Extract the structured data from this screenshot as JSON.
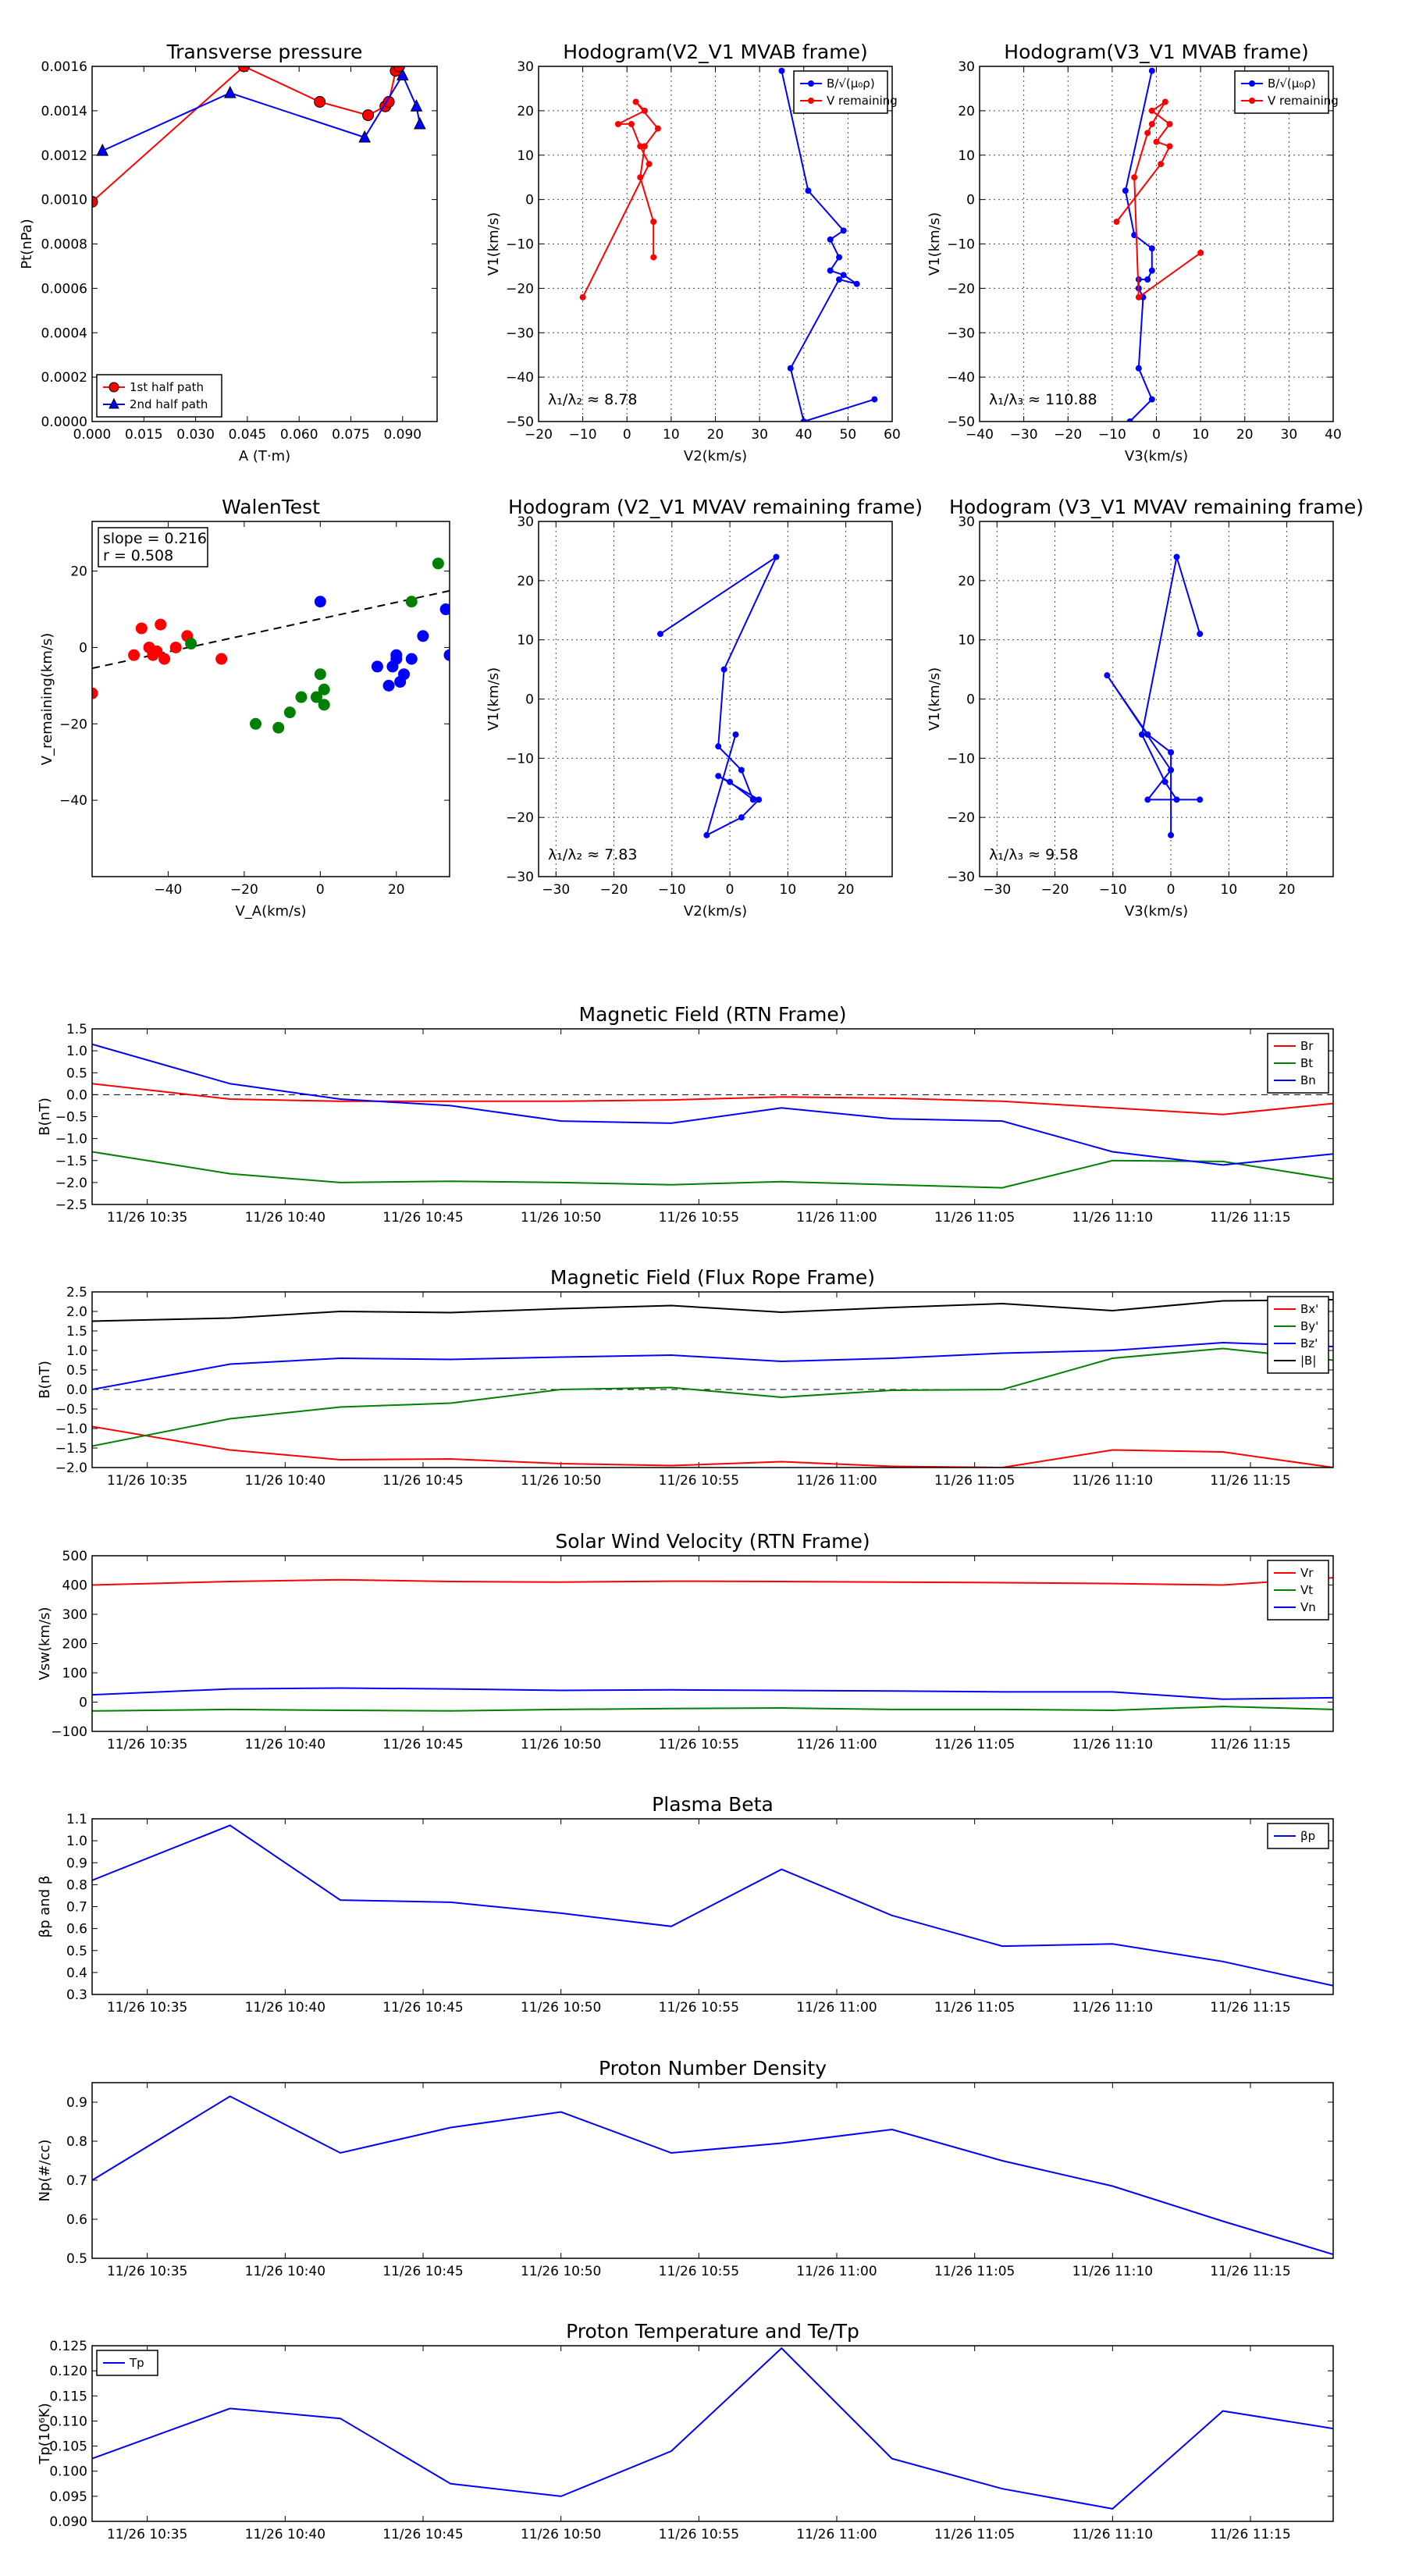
{
  "colors": {
    "red": "#ff0000",
    "blue": "#0000ff",
    "green": "#008000",
    "black": "#000000"
  },
  "chart_data": [
    {
      "id": "tp",
      "type": "line",
      "title": "Transverse pressure",
      "xlabel": "A (T·m)",
      "ylabel": "Pt(nPa)",
      "xlim": [
        0.0,
        0.1
      ],
      "ylim": [
        0.0,
        0.0016
      ],
      "xticks": [
        0.0,
        0.015,
        0.03,
        0.045,
        0.06,
        0.075,
        0.09
      ],
      "xtick_labels": [
        "0.000",
        "0.015",
        "0.030",
        "0.045",
        "0.060",
        "0.075",
        "0.090"
      ],
      "yticks": [
        0.0,
        0.0002,
        0.0004,
        0.0006,
        0.0008,
        0.001,
        0.0012,
        0.0014,
        0.0016
      ],
      "ytick_labels": [
        "0.0000",
        "0.0002",
        "0.0004",
        "0.0006",
        "0.0008",
        "0.0010",
        "0.0012",
        "0.0014",
        "0.0016"
      ],
      "grid": false,
      "legend": "lower-left",
      "series": [
        {
          "name": "1st half path",
          "color": "red",
          "marker": "circle",
          "x": [
            0.0,
            0.044,
            0.066,
            0.08,
            0.085,
            0.086,
            0.088,
            0.089
          ],
          "y": [
            0.00099,
            0.0016,
            0.00144,
            0.00138,
            0.00142,
            0.00144,
            0.00158,
            0.0016
          ]
        },
        {
          "name": "2nd half path",
          "color": "blue",
          "marker": "triangle",
          "x": [
            0.003,
            0.04,
            0.079,
            0.09,
            0.094,
            0.095
          ],
          "y": [
            0.00122,
            0.00148,
            0.00128,
            0.00156,
            0.00142,
            0.00134
          ]
        }
      ]
    },
    {
      "id": "h1",
      "type": "line",
      "title": "Hodogram(V2_V1 MVAB frame)",
      "xlabel": "V2(km/s)",
      "ylabel": "V1(km/s)",
      "xlim": [
        -20,
        60
      ],
      "ylim": [
        -50,
        30
      ],
      "xticks": [
        -20,
        -10,
        0,
        10,
        20,
        30,
        40,
        50,
        60
      ],
      "xtick_labels": [
        "−20",
        "−10",
        "0",
        "10",
        "20",
        "30",
        "40",
        "50",
        "60"
      ],
      "yticks": [
        -50,
        -40,
        -30,
        -20,
        -10,
        0,
        10,
        20,
        30
      ],
      "ytick_labels": [
        "−50",
        "−40",
        "−30",
        "−20",
        "−10",
        "0",
        "10",
        "20",
        "30"
      ],
      "grid": true,
      "legend": "top-right",
      "annotation": "λ₁/λ₂ ≈ 8.78",
      "series": [
        {
          "name": "B/√(μ₀ρ)",
          "color": "blue",
          "marker": "dot",
          "x": [
            35,
            41,
            49,
            46,
            48,
            46,
            49,
            52,
            48,
            37,
            40,
            56
          ],
          "y": [
            29,
            2,
            -7,
            -9,
            -13,
            -16,
            -17,
            -19,
            -18,
            -38,
            -50,
            -45
          ]
        },
        {
          "name": "V remaining",
          "color": "red",
          "marker": "dot",
          "x": [
            6,
            6,
            3,
            4,
            7,
            2,
            4,
            -2,
            1,
            3,
            5,
            -10
          ],
          "y": [
            -13,
            -5,
            5,
            12,
            16,
            22,
            20,
            17,
            17,
            12,
            8,
            -22
          ]
        }
      ]
    },
    {
      "id": "h2",
      "type": "line",
      "title": "Hodogram(V3_V1 MVAB frame)",
      "xlabel": "V3(km/s)",
      "ylabel": "V1(km/s)",
      "xlim": [
        -40,
        40
      ],
      "ylim": [
        -50,
        30
      ],
      "xticks": [
        -40,
        -30,
        -20,
        -10,
        0,
        10,
        20,
        30,
        40
      ],
      "xtick_labels": [
        "−40",
        "−30",
        "−20",
        "−10",
        "0",
        "10",
        "20",
        "30",
        "40"
      ],
      "yticks": [
        -50,
        -40,
        -30,
        -20,
        -10,
        0,
        10,
        20,
        30
      ],
      "ytick_labels": [
        "−50",
        "−40",
        "−30",
        "−20",
        "−10",
        "0",
        "10",
        "20",
        "30"
      ],
      "grid": true,
      "legend": "top-right",
      "annotation": "λ₁/λ₃ ≈ 110.88",
      "series": [
        {
          "name": "B/√(μ₀ρ)",
          "color": "blue",
          "marker": "dot",
          "x": [
            -1,
            -7,
            -5,
            -1,
            -1,
            -2,
            -4,
            -4,
            -3,
            -4,
            -1,
            -6
          ],
          "y": [
            29,
            2,
            -8,
            -11,
            -16,
            -18,
            -18,
            -20,
            -22,
            -38,
            -45,
            -50
          ]
        },
        {
          "name": "V remaining",
          "color": "red",
          "marker": "dot",
          "x": [
            10,
            -4,
            -5,
            -2,
            -1,
            2,
            -1,
            3,
            0,
            3,
            1,
            -9
          ],
          "y": [
            -12,
            -22,
            5,
            15,
            17,
            22,
            20,
            17,
            13,
            12,
            8,
            -5
          ]
        }
      ]
    },
    {
      "id": "wt",
      "type": "scatter",
      "title": "WalenTest",
      "xlabel": "V_A(km/s)",
      "ylabel": "V_remaining(km/s)",
      "xlim": [
        -60,
        34
      ],
      "ylim": [
        -60,
        33
      ],
      "xticks": [
        -40,
        -20,
        0,
        20
      ],
      "xtick_labels": [
        "−40",
        "−20",
        "0",
        "20"
      ],
      "yticks": [
        -40,
        -20,
        0,
        20
      ],
      "ytick_labels": [
        "−40",
        "−20",
        "0",
        "20"
      ],
      "grid": false,
      "text_lines": [
        "slope = 0.216",
        "r = 0.508"
      ],
      "fit_line": {
        "slope": 0.216,
        "intercept": 7.5
      },
      "series": [
        {
          "color": "red",
          "x": [
            -60,
            -49,
            -47,
            -45,
            -43,
            -42,
            -41,
            -38,
            -35,
            -26,
            -44
          ],
          "y": [
            -12,
            -2,
            5,
            0,
            -1,
            6,
            -3,
            0,
            3,
            -3,
            -2
          ]
        },
        {
          "color": "green",
          "x": [
            -34,
            -17,
            -11,
            -8,
            -5,
            -1,
            0,
            1,
            1,
            24,
            31
          ],
          "y": [
            1,
            -20,
            -21,
            -17,
            -13,
            -13,
            -7,
            -11,
            -15,
            12,
            22
          ]
        },
        {
          "color": "blue",
          "x": [
            0,
            15,
            18,
            19,
            20,
            20,
            21,
            22,
            24,
            27,
            33,
            34
          ],
          "y": [
            12,
            -5,
            -10,
            -5,
            -2,
            -3,
            -9,
            -7,
            -3,
            3,
            10,
            -2
          ]
        }
      ]
    },
    {
      "id": "h3",
      "type": "line",
      "title": "Hodogram (V2_V1 MVAV remaining frame)",
      "xlabel": "V2(km/s)",
      "ylabel": "V1(km/s)",
      "xlim": [
        -33,
        28
      ],
      "ylim": [
        -30,
        30
      ],
      "xticks": [
        -30,
        -20,
        -10,
        0,
        10,
        20
      ],
      "xtick_labels": [
        "−30",
        "−20",
        "−10",
        "0",
        "10",
        "20"
      ],
      "yticks": [
        -30,
        -20,
        -10,
        0,
        10,
        20,
        30
      ],
      "ytick_labels": [
        "−30",
        "−20",
        "−10",
        "0",
        "10",
        "20",
        "30"
      ],
      "grid": true,
      "annotation": "λ₁/λ₂ ≈ 7.83",
      "series": [
        {
          "color": "blue",
          "marker": "dot",
          "x": [
            -12,
            8,
            -1,
            -2,
            2,
            4,
            0,
            -2,
            5,
            2,
            -4,
            1
          ],
          "y": [
            11,
            24,
            5,
            -8,
            -12,
            -17,
            -14,
            -13,
            -17,
            -20,
            -23,
            -6
          ]
        }
      ]
    },
    {
      "id": "h4",
      "type": "line",
      "title": "Hodogram (V3_V1 MVAV remaining frame)",
      "xlabel": "V3(km/s)",
      "ylabel": "V1(km/s)",
      "xlim": [
        -33,
        28
      ],
      "ylim": [
        -30,
        30
      ],
      "xticks": [
        -30,
        -20,
        -10,
        0,
        10,
        20
      ],
      "xtick_labels": [
        "−30",
        "−20",
        "−10",
        "0",
        "10",
        "20"
      ],
      "yticks": [
        -30,
        -20,
        -10,
        0,
        10,
        20,
        30
      ],
      "ytick_labels": [
        "−30",
        "−20",
        "−10",
        "0",
        "10",
        "20",
        "30"
      ],
      "grid": true,
      "annotation": "λ₁/λ₃ ≈ 9.58",
      "series": [
        {
          "color": "blue",
          "marker": "dot",
          "x": [
            5,
            1,
            -5,
            -1,
            1,
            5,
            -4,
            0,
            -11,
            -4,
            0,
            0
          ],
          "y": [
            11,
            24,
            -6,
            -14,
            -17,
            -17,
            -17,
            -12,
            4,
            -6,
            -9,
            -23
          ]
        }
      ]
    },
    {
      "id": "ts1",
      "type": "line",
      "title": "Magnetic Field (RTN Frame)",
      "ylabel": "B(nT)",
      "ylim": [
        -2.5,
        1.5
      ],
      "yticks": [
        -2.5,
        -2.0,
        -1.5,
        -1.0,
        -0.5,
        0.0,
        0.5,
        1.0,
        1.5
      ],
      "ytick_labels": [
        "−2.5",
        "−2.0",
        "−1.5",
        "−1.0",
        "−0.5",
        "0.0",
        "0.5",
        "1.0",
        "1.5"
      ],
      "zero_line": true,
      "legend": "top-right",
      "series": [
        {
          "name": "Br",
          "color": "red",
          "y": [
            0.25,
            -0.1,
            -0.15,
            -0.15,
            -0.15,
            -0.12,
            -0.05,
            -0.08,
            -0.15,
            -0.3,
            -0.45,
            -0.2
          ]
        },
        {
          "name": "Bt",
          "color": "green",
          "y": [
            -1.3,
            -1.8,
            -2.0,
            -1.97,
            -2.0,
            -2.05,
            -1.98,
            -2.05,
            -2.12,
            -1.5,
            -1.52,
            -1.92
          ]
        },
        {
          "name": "Bn",
          "color": "blue",
          "y": [
            1.15,
            0.25,
            -0.1,
            -0.25,
            -0.6,
            -0.65,
            -0.3,
            -0.55,
            -0.6,
            -1.3,
            -1.6,
            -1.35
          ]
        }
      ]
    },
    {
      "id": "ts2",
      "type": "line",
      "title": "Magnetic Field (Flux Rope Frame)",
      "ylabel": "B(nT)",
      "ylim": [
        -2.0,
        2.5
      ],
      "yticks": [
        -2.0,
        -1.5,
        -1.0,
        -0.5,
        0.0,
        0.5,
        1.0,
        1.5,
        2.0,
        2.5
      ],
      "ytick_labels": [
        "−2.0",
        "−1.5",
        "−1.0",
        "−0.5",
        "0.0",
        "0.5",
        "1.0",
        "1.5",
        "2.0",
        "2.5"
      ],
      "zero_line": true,
      "legend": "top-right",
      "series": [
        {
          "name": "Bx'",
          "color": "red",
          "y": [
            -0.95,
            -1.55,
            -1.8,
            -1.78,
            -1.9,
            -1.95,
            -1.85,
            -1.97,
            -2.0,
            -1.55,
            -1.6,
            -2.0
          ]
        },
        {
          "name": "By'",
          "color": "green",
          "y": [
            -1.45,
            -0.75,
            -0.45,
            -0.35,
            0.0,
            0.05,
            -0.2,
            -0.02,
            0.0,
            0.8,
            1.05,
            0.75
          ]
        },
        {
          "name": "Bz'",
          "color": "blue",
          "y": [
            0.0,
            0.65,
            0.8,
            0.77,
            0.83,
            0.88,
            0.72,
            0.8,
            0.93,
            1.0,
            1.2,
            1.1
          ]
        },
        {
          "name": "|B|",
          "color": "black",
          "y": [
            1.75,
            1.83,
            2.0,
            1.97,
            2.07,
            2.15,
            1.98,
            2.1,
            2.2,
            2.02,
            2.27,
            2.3
          ]
        }
      ]
    },
    {
      "id": "ts3",
      "type": "line",
      "title": "Solar Wind Velocity (RTN Frame)",
      "ylabel": "Vsw(km/s)",
      "ylim": [
        -100,
        500
      ],
      "yticks": [
        -100,
        0,
        100,
        200,
        300,
        400,
        500
      ],
      "ytick_labels": [
        "−100",
        "0",
        "100",
        "200",
        "300",
        "400",
        "500"
      ],
      "legend": "top-right",
      "series": [
        {
          "name": "Vr",
          "color": "red",
          "y": [
            400,
            412,
            418,
            412,
            410,
            413,
            412,
            410,
            408,
            405,
            400,
            425
          ]
        },
        {
          "name": "Vt",
          "color": "green",
          "y": [
            -30,
            -25,
            -28,
            -30,
            -25,
            -22,
            -20,
            -25,
            -25,
            -28,
            -15,
            -25
          ]
        },
        {
          "name": "Vn",
          "color": "blue",
          "y": [
            25,
            45,
            48,
            45,
            40,
            42,
            40,
            38,
            35,
            35,
            10,
            15
          ]
        }
      ]
    },
    {
      "id": "ts4",
      "type": "line",
      "title": "Plasma Beta",
      "ylabel": "βp and β",
      "ylim": [
        0.3,
        1.1
      ],
      "yticks": [
        0.3,
        0.4,
        0.5,
        0.6,
        0.7,
        0.8,
        0.9,
        1.0,
        1.1
      ],
      "ytick_labels": [
        "0.3",
        "0.4",
        "0.5",
        "0.6",
        "0.7",
        "0.8",
        "0.9",
        "1.0",
        "1.1"
      ],
      "legend": "top-right",
      "series": [
        {
          "name": "βp",
          "color": "blue",
          "y": [
            0.82,
            1.07,
            0.73,
            0.72,
            0.67,
            0.61,
            0.87,
            0.66,
            0.52,
            0.53,
            0.45,
            0.34
          ]
        }
      ]
    },
    {
      "id": "ts5",
      "type": "line",
      "title": "Proton Number Density",
      "ylabel": "Np(#/cc)",
      "ylim": [
        0.5,
        0.95
      ],
      "yticks": [
        0.5,
        0.6,
        0.7,
        0.8,
        0.9
      ],
      "ytick_labels": [
        "0.5",
        "0.6",
        "0.7",
        "0.8",
        "0.9"
      ],
      "series": [
        {
          "color": "blue",
          "y": [
            0.7,
            0.915,
            0.77,
            0.835,
            0.875,
            0.77,
            0.795,
            0.83,
            0.75,
            0.685,
            0.595,
            0.51
          ]
        }
      ]
    },
    {
      "id": "ts6",
      "type": "line",
      "title": "Proton Temperature and Te/Tp",
      "ylabel": "Tp(10⁶K)",
      "ylim": [
        0.09,
        0.125
      ],
      "yticks": [
        0.09,
        0.095,
        0.1,
        0.105,
        0.11,
        0.115,
        0.12,
        0.125
      ],
      "ytick_labels": [
        "0.090",
        "0.095",
        "0.100",
        "0.105",
        "0.110",
        "0.115",
        "0.120",
        "0.125"
      ],
      "legend": "top-left",
      "series": [
        {
          "name": "Tp",
          "color": "blue",
          "y": [
            0.1025,
            0.1125,
            0.1105,
            0.0975,
            0.095,
            0.104,
            0.1245,
            0.1025,
            0.0965,
            0.0925,
            0.112,
            0.1085
          ]
        }
      ]
    }
  ],
  "time_axis": {
    "x": [
      "10:33",
      "10:38",
      "10:42",
      "10:46",
      "10:50",
      "10:54",
      "10:58",
      "11:02",
      "11:06",
      "11:10",
      "11:14",
      "11:18"
    ],
    "ticks": [
      "10:35",
      "10:40",
      "10:45",
      "10:50",
      "10:55",
      "11:00",
      "11:05",
      "11:10",
      "11:15"
    ],
    "tick_labels": [
      "11/26 10:35",
      "11/26 10:40",
      "11/26 10:45",
      "11/26 10:50",
      "11/26 10:55",
      "11/26 11:00",
      "11/26 11:05",
      "11/26 11:10",
      "11/26 11:15"
    ],
    "range": [
      "10:33",
      "11:18"
    ]
  }
}
